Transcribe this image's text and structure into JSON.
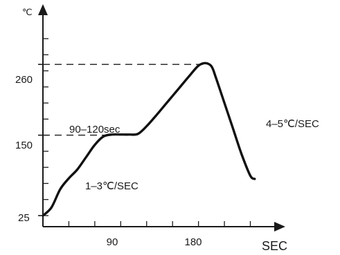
{
  "chart_data": {
    "type": "line",
    "title": "",
    "xlabel": "SEC",
    "ylabel": "",
    "y_unit_label": "℃",
    "xlim": [
      0,
      250
    ],
    "ylim": [
      25,
      330
    ],
    "x_ticks": [
      90,
      180
    ],
    "y_ticks": [
      25,
      150,
      260
    ],
    "grid": false,
    "series": [
      {
        "x": [
          0,
          10,
          20,
          30,
          40,
          50,
          60,
          70,
          80,
          90,
          100,
          110,
          120,
          130,
          140,
          150,
          160,
          170,
          180,
          188,
          195,
          200,
          210,
          220,
          230,
          240,
          245
        ],
        "y": [
          25,
          38,
          66,
          83,
          97,
          116,
          135,
          148,
          151,
          151,
          151,
          152,
          164,
          179,
          195,
          211,
          227,
          243,
          258,
          262,
          257,
          240,
          200,
          160,
          120,
          87,
          82
        ]
      }
    ],
    "reference_lines": [
      {
        "y": 260,
        "x_end": 188
      },
      {
        "y": 150,
        "x_end": 80
      }
    ],
    "annotations": [
      {
        "text": "90–120sec"
      },
      {
        "text": "1–3℃/SEC"
      },
      {
        "text": "4–5℃/SEC"
      }
    ]
  }
}
